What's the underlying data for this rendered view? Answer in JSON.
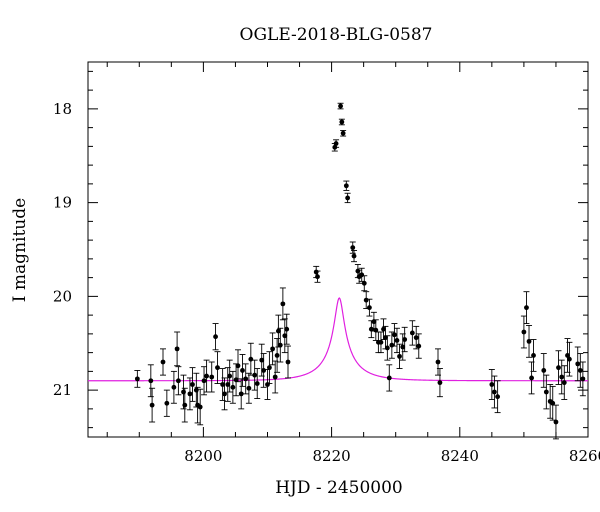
{
  "chart_data": {
    "type": "scatter",
    "title": "OGLE-2018-BLG-0587",
    "xlabel": "HJD - 2450000",
    "ylabel": "I magnitude",
    "xlim": [
      8182,
      8260
    ],
    "ylim": [
      21.5,
      17.5
    ],
    "y_inverted": true,
    "x_ticks": [
      8200,
      8220,
      8240,
      8260
    ],
    "x_tick_labels": [
      "8200",
      "8220",
      "8240",
      "8260"
    ],
    "y_ticks": [
      18,
      19,
      20,
      21
    ],
    "y_tick_labels": [
      "18",
      "19",
      "20",
      "21"
    ],
    "grid": false,
    "legend": "none",
    "colors": {
      "points": "#000000",
      "model": "#e020e0"
    },
    "model": {
      "t0": 8221.2,
      "u0": 0.12,
      "tE": 5.6,
      "baseline_mag": 20.9,
      "fs": 0.17
    },
    "series": [
      {
        "type": "scatter",
        "x": [
          8189.7,
          8191.8,
          8192.0,
          8193.7,
          8194.3,
          8195.4,
          8195.9,
          8196.1,
          8196.9,
          8197.1,
          8197.9,
          8198.3,
          8198.9,
          8199.1,
          8199.5,
          8200.1,
          8200.5,
          8201.3,
          8201.9,
          8202.2,
          8203.0,
          8203.3,
          8203.8,
          8204.1,
          8204.6,
          8205.1,
          8205.4,
          8205.9,
          8206.1,
          8206.6,
          8207.1,
          8207.4,
          8208.0,
          8208.4,
          8209.1,
          8209.4,
          8210.0,
          8210.3,
          8210.8,
          8211.2,
          8211.5,
          8211.7,
          8212.0,
          8212.4,
          8212.7,
          8213.0,
          8213.2,
          8217.6,
          8217.8,
          8220.5,
          8220.7,
          8221.4,
          8221.6,
          8221.8,
          8222.3,
          8222.5,
          8223.3,
          8223.5,
          8224.1,
          8224.3,
          8224.7,
          8225.1,
          8225.4,
          8225.9,
          8226.2,
          8226.6,
          8226.9,
          8227.3,
          8227.7,
          8228.1,
          8228.4,
          8228.7,
          8229.0,
          8229.4,
          8229.8,
          8230.2,
          8230.6,
          8231.1,
          8231.4,
          8232.6,
          8233.2,
          8233.6,
          8236.6,
          8236.9,
          8245.0,
          8245.4,
          8245.9,
          8250.0,
          8250.4,
          8250.8,
          8251.2,
          8251.5,
          8253.1,
          8253.5,
          8254.1,
          8254.5,
          8255.0,
          8255.4,
          8255.9,
          8256.3,
          8256.8,
          8257.1,
          8258.4,
          8258.8,
          8259.2
        ],
        "y": [
          20.88,
          20.9,
          21.16,
          20.7,
          21.14,
          20.97,
          20.56,
          20.9,
          21.02,
          21.16,
          21.04,
          20.94,
          21.0,
          21.16,
          21.18,
          20.9,
          20.85,
          20.86,
          20.43,
          20.76,
          20.94,
          21.04,
          20.94,
          20.85,
          20.97,
          20.89,
          20.74,
          21.04,
          20.79,
          20.88,
          20.98,
          20.67,
          20.84,
          20.93,
          20.68,
          20.79,
          20.94,
          20.76,
          20.56,
          20.86,
          20.63,
          20.37,
          20.52,
          20.08,
          20.42,
          20.35,
          20.7,
          19.74,
          19.79,
          18.41,
          18.37,
          17.97,
          18.14,
          18.26,
          18.82,
          18.95,
          19.48,
          19.57,
          19.73,
          19.79,
          19.77,
          19.86,
          20.04,
          20.12,
          20.35,
          20.27,
          20.36,
          20.49,
          20.49,
          20.35,
          20.44,
          20.55,
          20.87,
          20.52,
          20.41,
          20.47,
          20.64,
          20.54,
          20.46,
          20.39,
          20.44,
          20.53,
          20.7,
          20.92,
          20.94,
          21.02,
          21.07,
          20.38,
          20.12,
          20.48,
          20.87,
          20.63,
          20.79,
          21.02,
          21.12,
          21.14,
          21.34,
          20.76,
          20.86,
          20.92,
          20.63,
          20.67,
          20.72,
          20.79,
          20.88
        ],
        "yerr": [
          0.09,
          0.17,
          0.18,
          0.14,
          0.14,
          0.17,
          0.18,
          0.15,
          0.18,
          0.18,
          0.17,
          0.18,
          0.18,
          0.19,
          0.19,
          0.15,
          0.17,
          0.16,
          0.14,
          0.17,
          0.17,
          0.17,
          0.18,
          0.17,
          0.17,
          0.17,
          0.17,
          0.16,
          0.17,
          0.16,
          0.16,
          0.17,
          0.16,
          0.16,
          0.17,
          0.18,
          0.16,
          0.17,
          0.17,
          0.17,
          0.18,
          0.17,
          0.18,
          0.17,
          0.18,
          0.16,
          0.17,
          0.06,
          0.06,
          0.04,
          0.04,
          0.03,
          0.03,
          0.03,
          0.05,
          0.05,
          0.06,
          0.06,
          0.07,
          0.07,
          0.07,
          0.08,
          0.09,
          0.09,
          0.09,
          0.1,
          0.11,
          0.11,
          0.11,
          0.11,
          0.12,
          0.13,
          0.14,
          0.14,
          0.12,
          0.13,
          0.13,
          0.14,
          0.13,
          0.13,
          0.12,
          0.13,
          0.14,
          0.15,
          0.16,
          0.17,
          0.17,
          0.17,
          0.17,
          0.17,
          0.17,
          0.17,
          0.18,
          0.18,
          0.18,
          0.18,
          0.18,
          0.18,
          0.18,
          0.18,
          0.18,
          0.18,
          0.18,
          0.18,
          0.18
        ]
      }
    ]
  }
}
